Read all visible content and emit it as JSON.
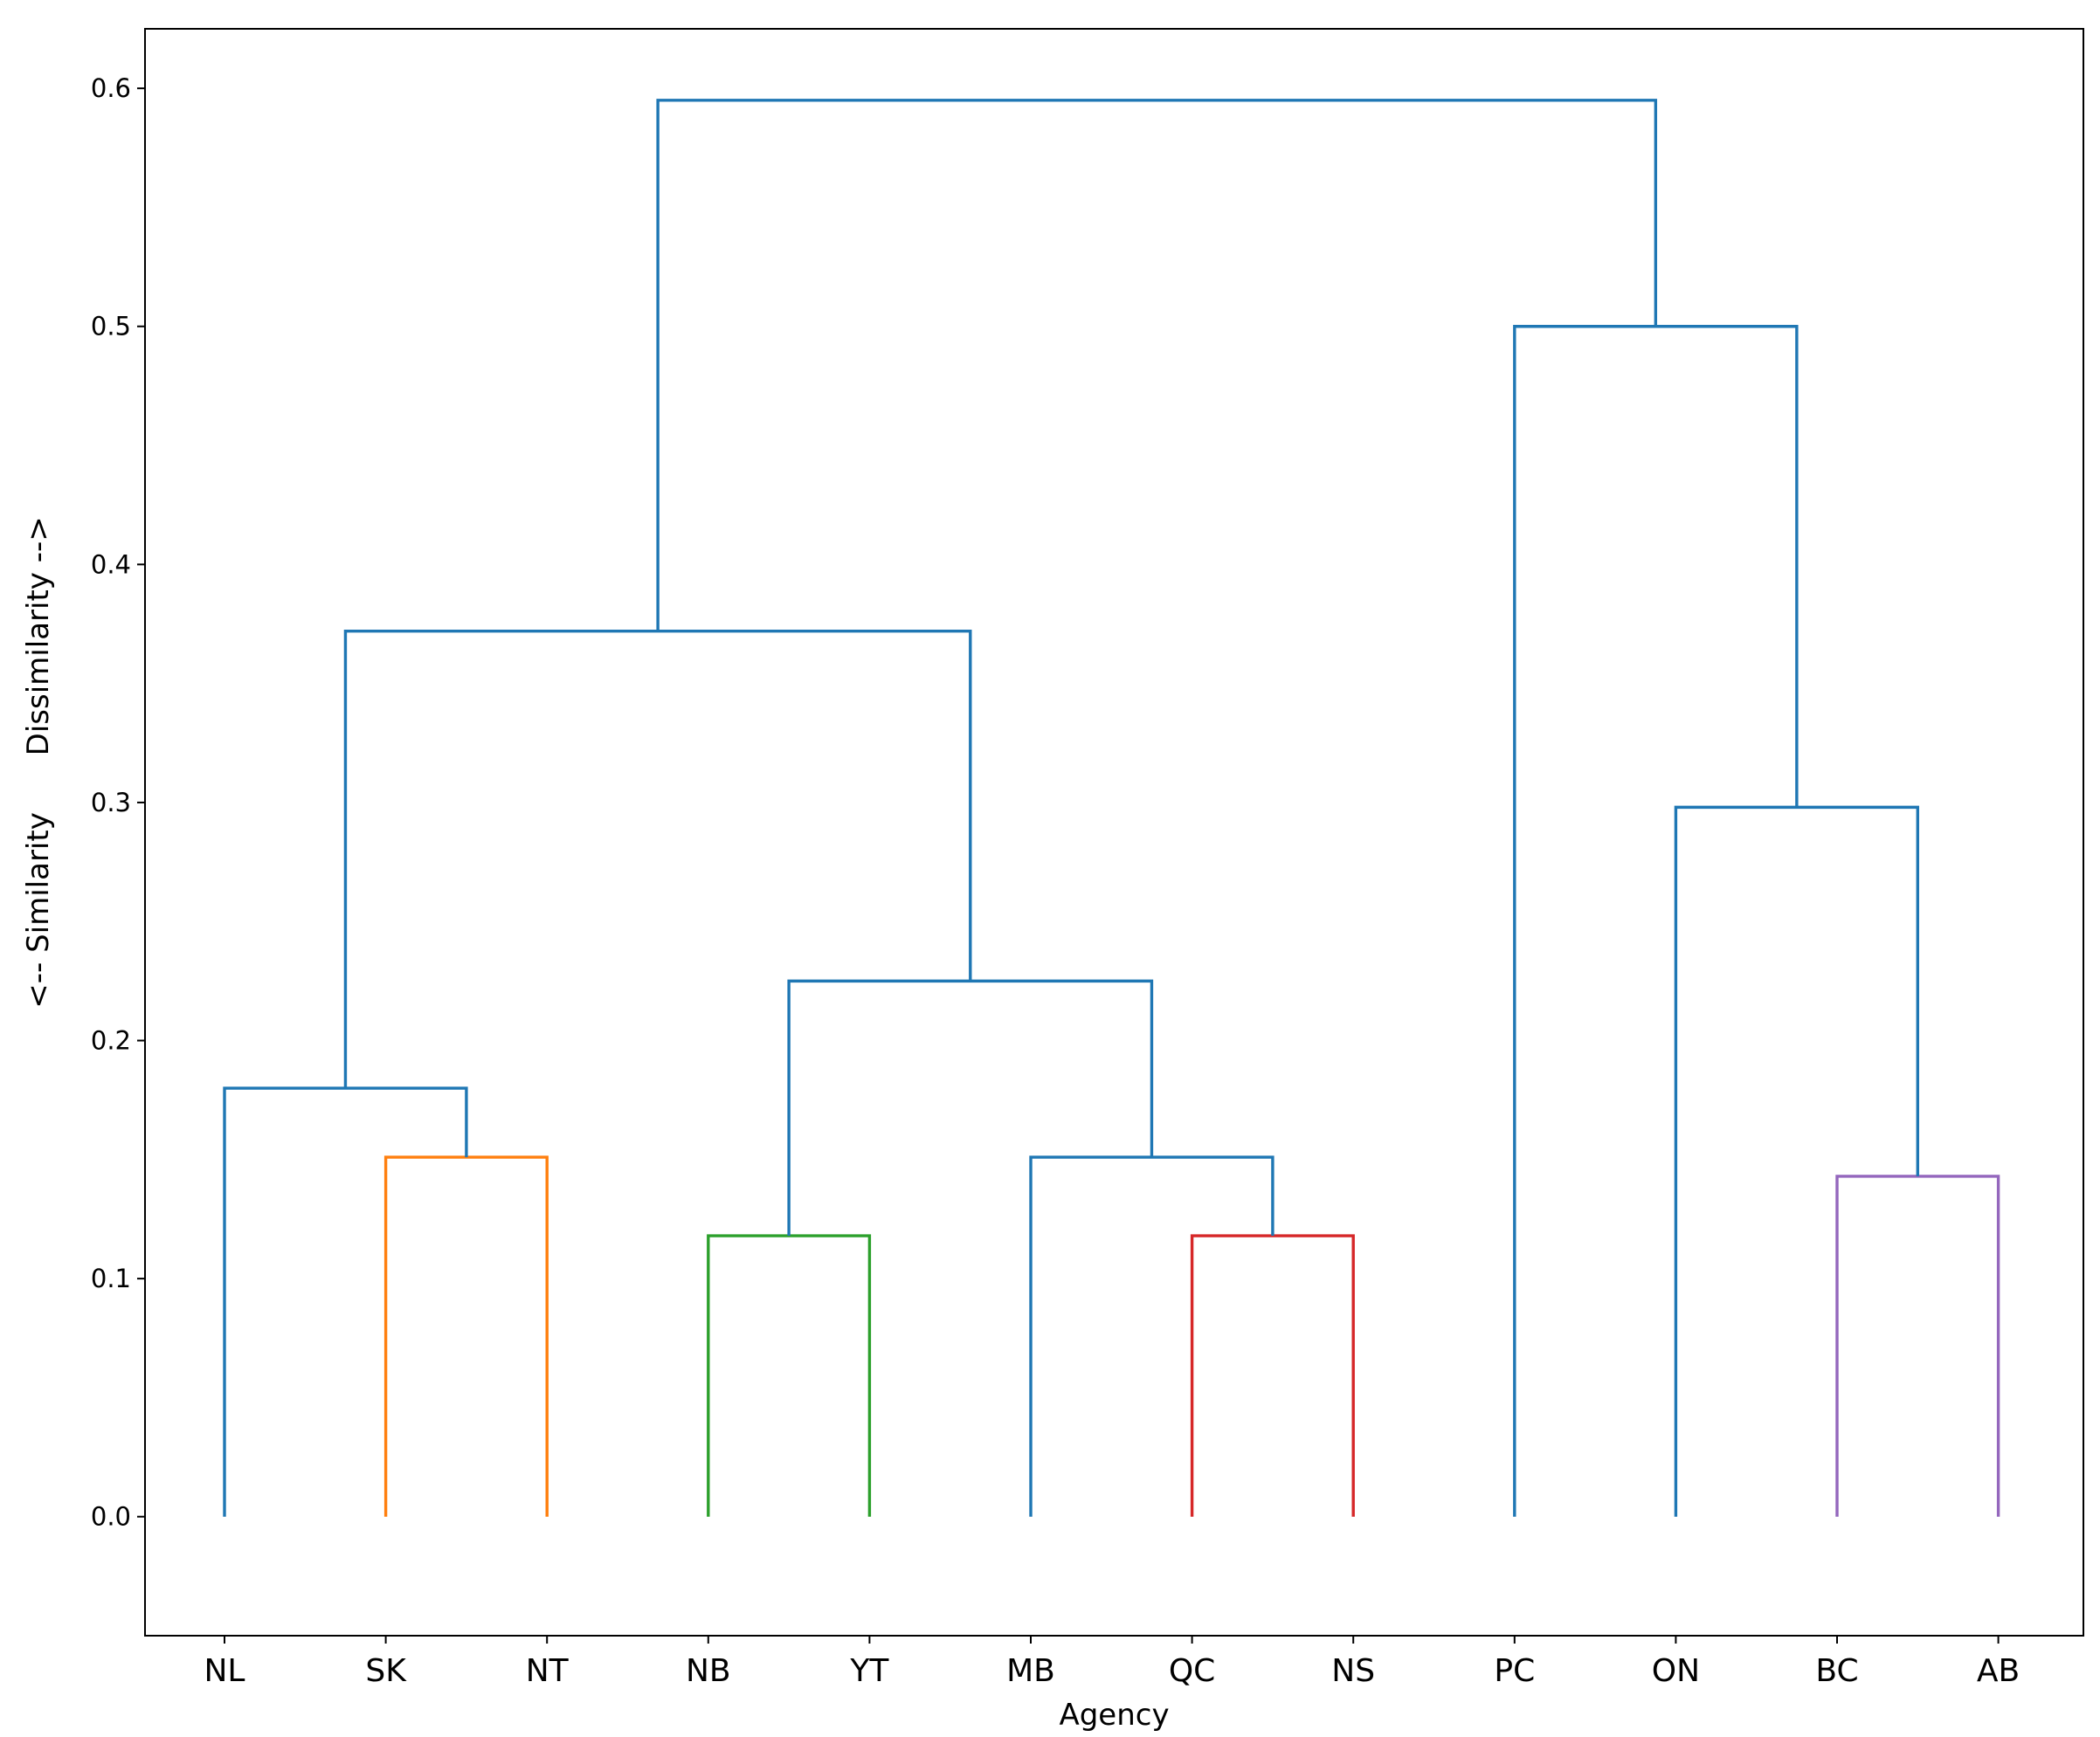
{
  "chart_data": {
    "type": "dendrogram",
    "title": "",
    "xlabel": "Agency",
    "ylabel": "<-- Similarity      Dissimilarity -->",
    "ylim": [
      -0.05,
      0.625
    ],
    "yticks": [
      "0.0",
      "0.1",
      "0.2",
      "0.3",
      "0.4",
      "0.5",
      "0.6"
    ],
    "ytick_values": [
      0.0,
      0.1,
      0.2,
      0.3,
      0.4,
      0.5,
      0.6
    ],
    "grid": false,
    "leaves": [
      "NL",
      "SK",
      "NT",
      "NB",
      "YT",
      "MB",
      "QC",
      "NS",
      "PC",
      "ON",
      "BC",
      "AB"
    ],
    "colors": {
      "default": "#1f77b4",
      "orange": "#ff7f0e",
      "green": "#2ca02c",
      "red": "#d62728",
      "purple": "#9467bd"
    },
    "merges": [
      {
        "id": "SK-NT",
        "left": "SK",
        "right": "NT",
        "height": 0.151,
        "color": "#ff7f0e"
      },
      {
        "id": "NB-YT",
        "left": "NB",
        "right": "YT",
        "height": 0.118,
        "color": "#2ca02c"
      },
      {
        "id": "QC-NS",
        "left": "QC",
        "right": "NS",
        "height": 0.118,
        "color": "#d62728"
      },
      {
        "id": "BC-AB",
        "left": "BC",
        "right": "AB",
        "height": 0.143,
        "color": "#9467bd"
      },
      {
        "id": "NL-SKNT",
        "left": "NL",
        "right": "SK-NT",
        "height": 0.18,
        "color": "#1f77b4"
      },
      {
        "id": "MB-QCNS",
        "left": "MB",
        "right": "QC-NS",
        "height": 0.151,
        "color": "#1f77b4"
      },
      {
        "id": "NBYT-MBQCNS",
        "left": "NB-YT",
        "right": "MB-QCNS",
        "height": 0.225,
        "color": "#1f77b4"
      },
      {
        "id": "LEFT",
        "left": "NL-SKNT",
        "right": "NBYT-MBQCNS",
        "height": 0.372,
        "color": "#1f77b4"
      },
      {
        "id": "ON-BCAB",
        "left": "ON",
        "right": "BC-AB",
        "height": 0.298,
        "color": "#1f77b4"
      },
      {
        "id": "PC-ONBCAB",
        "left": "PC",
        "right": "ON-BCAB",
        "height": 0.5,
        "color": "#1f77b4"
      },
      {
        "id": "ROOT",
        "left": "LEFT",
        "right": "PC-ONBCAB",
        "height": 0.595,
        "color": "#1f77b4"
      }
    ]
  }
}
